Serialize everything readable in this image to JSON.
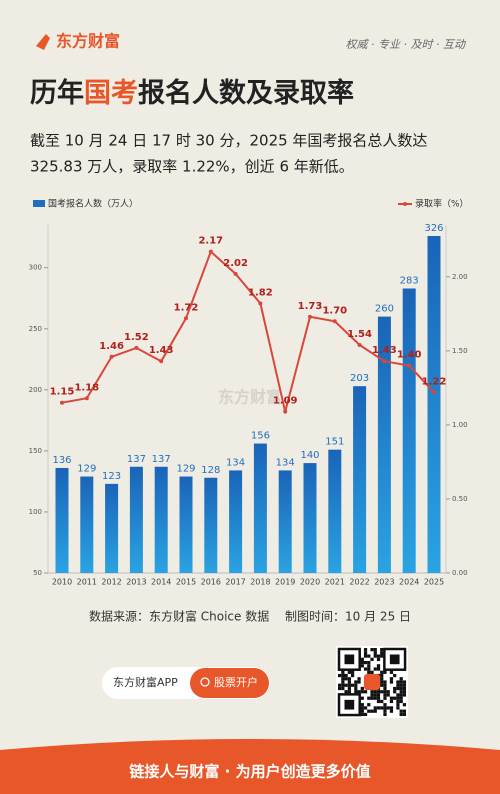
{
  "header": {
    "logo": "东方财富",
    "slogan": "权威 · 专业 · 及时 · 互动"
  },
  "chart_data": {
    "type": "bar",
    "title_parts": [
      "历年",
      "国考",
      "报名人数及录取率"
    ],
    "subtitle_lines": [
      "截至 10 月 24 日 17 时 30 分，2025 年国考报名总人数达",
      "325.83 万人，录取率 1.22%，创近 6 年新低。"
    ],
    "watermark": "东方财富",
    "categories": [
      "2010",
      "2011",
      "2012",
      "2013",
      "2014",
      "2015",
      "2016",
      "2017",
      "2018",
      "2019",
      "2020",
      "2021",
      "2022",
      "2023",
      "2024",
      "2025"
    ],
    "series": [
      {
        "name": "国考报名人数（万人）",
        "color": "#1f6fbf",
        "values": [
          136,
          129,
          123,
          137,
          137,
          129,
          128,
          134,
          156,
          134,
          140,
          151,
          203,
          260,
          283,
          326
        ]
      },
      {
        "name": "录取率（%）",
        "type": "line",
        "axis": "y2",
        "color": "#d9473a",
        "values": [
          1.15,
          1.18,
          1.46,
          1.52,
          1.43,
          1.72,
          2.17,
          2.02,
          1.82,
          1.09,
          1.73,
          1.7,
          1.54,
          1.43,
          1.4,
          1.22
        ],
        "value_labels": [
          "1.15",
          "1.18",
          "1.46",
          "1.52",
          "1.43",
          "1.72",
          "2.17",
          "2.02",
          "1.82",
          "1.09",
          "1.73",
          "1.70",
          "1.54",
          "1.43",
          "1.40",
          "1.22"
        ]
      }
    ],
    "ylim": [
      50,
      335
    ],
    "yticks": [
      50,
      100,
      150,
      200,
      250,
      300
    ],
    "y2lim": [
      0,
      2.35
    ],
    "y2ticks": [
      {
        "value": 0,
        "label": "0.00"
      },
      {
        "value": 0.5,
        "label": "0.50"
      },
      {
        "value": 1,
        "label": "1.00"
      },
      {
        "value": 1.5,
        "label": "1.50"
      },
      {
        "value": 2,
        "label": "2.00"
      }
    ],
    "source": "数据来源：东方财富 Choice 数据　 制图时间：10 月 25 日"
  },
  "app": {
    "name": "东方财富APP",
    "button": "股票开户"
  },
  "footer": "链接人与财富 · 为用户创造更多价值"
}
